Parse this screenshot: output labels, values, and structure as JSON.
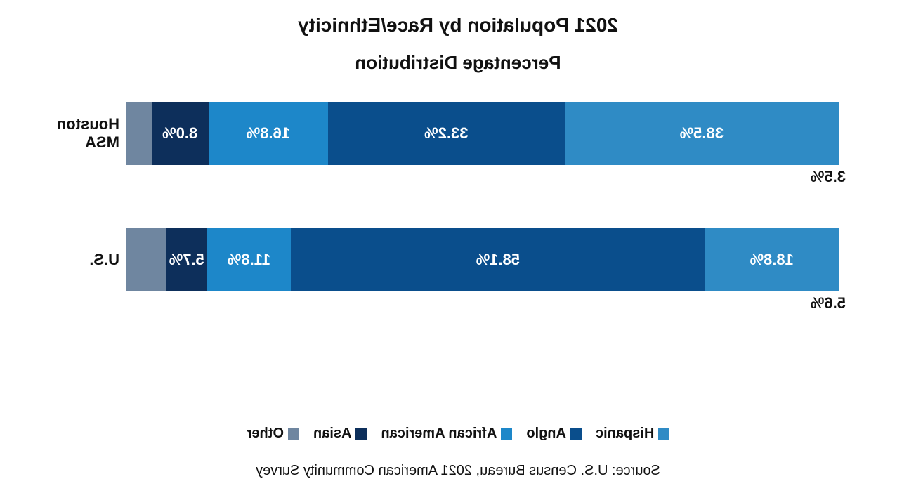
{
  "title": "2021 Population by Race/Ethnicity",
  "subtitle": "Percentage Distribution",
  "title_fontsize": 28,
  "subtitle_fontsize": 26,
  "label_fontsize": 22,
  "value_fontsize": 22,
  "legend_fontsize": 20,
  "source_fontsize": 20,
  "background_color": "#ffffff",
  "text_color": "#111111",
  "bar_text_color": "#ffffff",
  "categories": [
    {
      "name": "Hispanic",
      "color": "#2f8bc5"
    },
    {
      "name": "Anglo",
      "color": "#0a4e8c"
    },
    {
      "name": "African American",
      "color": "#1d87c9"
    },
    {
      "name": "Asian",
      "color": "#0d2f5b"
    },
    {
      "name": "Other",
      "color": "#6f86a0"
    }
  ],
  "rows": [
    {
      "label": "Houston MSA",
      "segments": [
        {
          "value": 38.5,
          "display": "38.5%",
          "color": "#2f8bc5",
          "show_inside": true
        },
        {
          "value": 33.2,
          "display": "33.2%",
          "color": "#0a4e8c",
          "show_inside": true
        },
        {
          "value": 16.8,
          "display": "16.8%",
          "color": "#1d87c9",
          "show_inside": true
        },
        {
          "value": 8.0,
          "display": "8.0%",
          "color": "#0d2f5b",
          "show_inside": true
        },
        {
          "value": 3.5,
          "display": "3.5%",
          "color": "#6f86a0",
          "show_inside": false
        }
      ]
    },
    {
      "label": "U.S.",
      "segments": [
        {
          "value": 18.8,
          "display": "18.8%",
          "color": "#2f8bc5",
          "show_inside": true
        },
        {
          "value": 58.1,
          "display": "58.1%",
          "color": "#0a4e8c",
          "show_inside": true
        },
        {
          "value": 11.8,
          "display": "11.8%",
          "color": "#1d87c9",
          "show_inside": true
        },
        {
          "value": 5.7,
          "display": "5.7%",
          "color": "#0d2f5b",
          "show_inside": true
        },
        {
          "value": 5.6,
          "display": "5.6%",
          "color": "#6f86a0",
          "show_inside": false
        }
      ]
    }
  ],
  "source": "Source: U.S. Census Bureau, 2021 American Community Survey",
  "chart_type": "stacked-bar-horizontal"
}
